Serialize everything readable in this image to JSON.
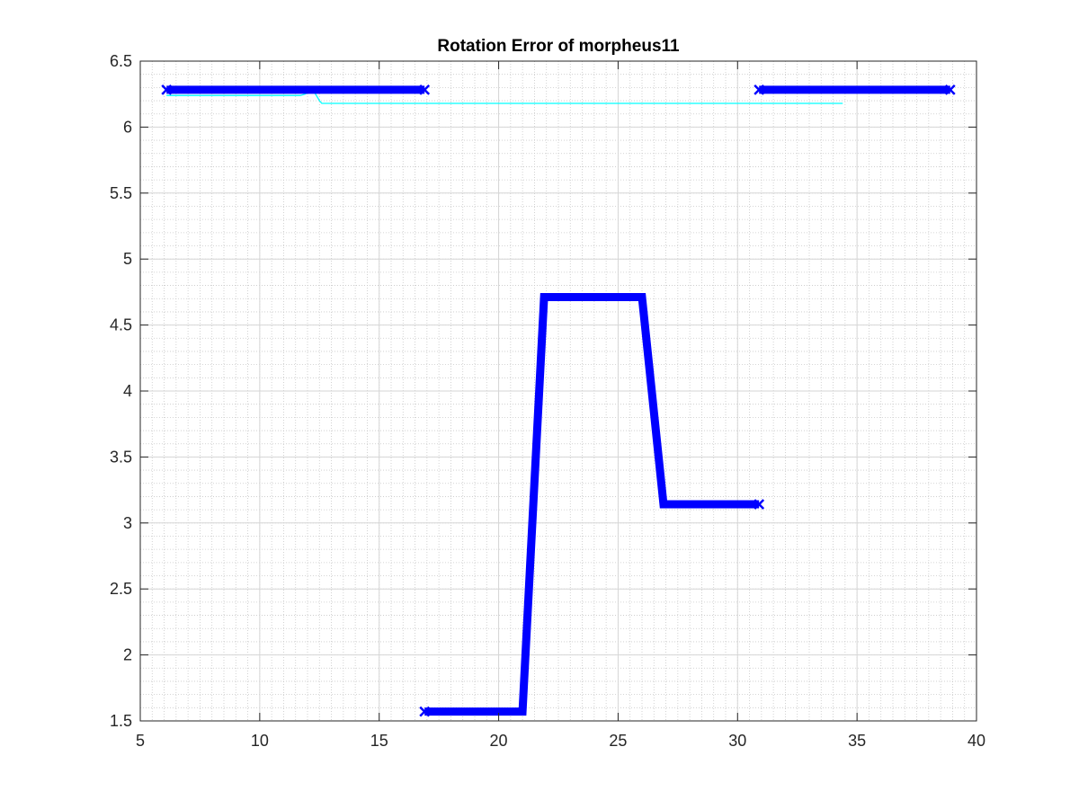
{
  "chart_data": {
    "type": "line",
    "title": "Rotation Error of morpheus11",
    "xlabel": "",
    "ylabel": "",
    "xlim": [
      5,
      40
    ],
    "ylim": [
      1.5,
      6.5
    ],
    "xticks": [
      5,
      10,
      15,
      20,
      25,
      30,
      35,
      40
    ],
    "yticks": [
      1.5,
      2,
      2.5,
      3,
      3.5,
      4,
      4.5,
      5,
      5.5,
      6,
      6.5
    ],
    "xtick_labels": [
      "5",
      "10",
      "15",
      "20",
      "25",
      "30",
      "35",
      "40"
    ],
    "ytick_labels": [
      "1.5",
      "2",
      "2.5",
      "3",
      "3.5",
      "4",
      "4.5",
      "5",
      "5.5",
      "6",
      "6.5"
    ],
    "grid": "major and minor",
    "legend": "none",
    "series": [
      {
        "color": "#0000ff",
        "style": "thick line with x markers",
        "segments": [
          {
            "x": [
              6.1,
              16.9
            ],
            "y": [
              6.283,
              6.283
            ]
          },
          {
            "x": [
              16.9,
              21.0,
              21.9,
              26.0,
              26.9,
              30.9
            ],
            "y": [
              1.571,
              1.571,
              4.712,
              4.712,
              3.142,
              3.142
            ]
          },
          {
            "x": [
              30.9,
              38.9
            ],
            "y": [
              6.283,
              6.283
            ]
          }
        ]
      },
      {
        "color": "#00ffff",
        "style": "thin line",
        "segments": [
          {
            "x": [
              6.1,
              11.7,
              11.9,
              12.1,
              12.3,
              12.5,
              12.6,
              34.4
            ],
            "y": [
              6.24,
              6.24,
              6.25,
              6.27,
              6.26,
              6.2,
              6.18,
              6.18
            ]
          }
        ]
      }
    ]
  }
}
